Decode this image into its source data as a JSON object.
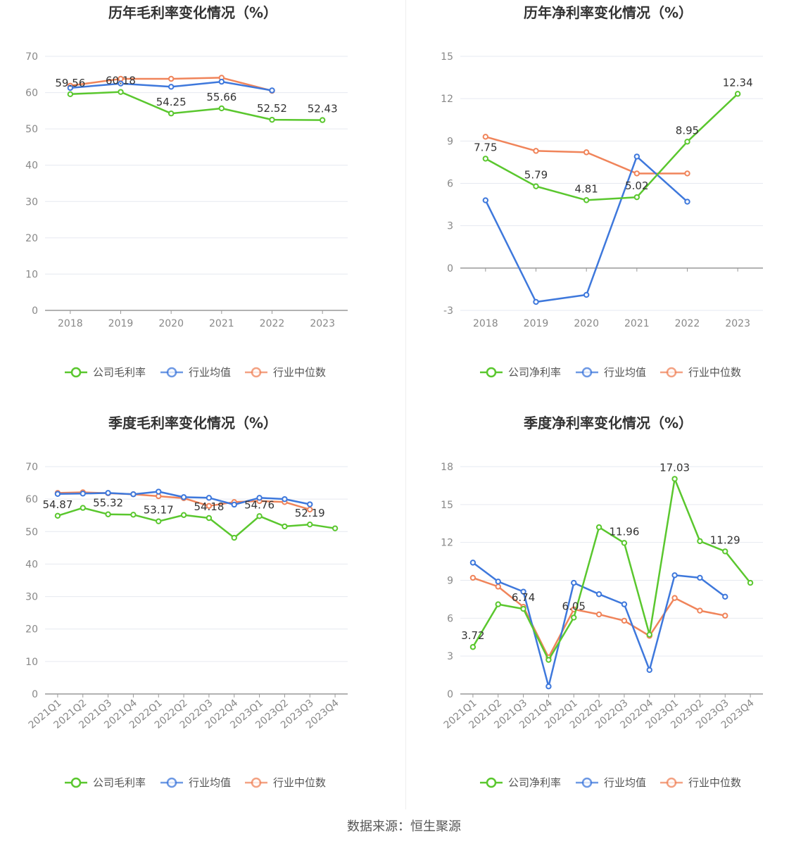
{
  "colors": {
    "company": "#5ac72e",
    "avg": "#3e78dc",
    "median": "#f0845a",
    "grid": "#e6e9f0",
    "axis": "#999999",
    "text": "#888888",
    "title": "#333333"
  },
  "source": {
    "label": "数据来源：",
    "name": "恒生聚源"
  },
  "chart_data": [
    {
      "id": "annual-gross",
      "type": "line",
      "title": "历年毛利率变化情况（%）",
      "categories": [
        "2018",
        "2019",
        "2020",
        "2021",
        "2022",
        "2023"
      ],
      "ylim": [
        0,
        70
      ],
      "yticks": [
        0,
        10,
        20,
        30,
        40,
        50,
        60,
        70
      ],
      "rotate_labels": false,
      "series": [
        {
          "name": "公司毛利率",
          "key": "company",
          "values": [
            59.56,
            60.18,
            54.25,
            55.66,
            52.52,
            52.43
          ],
          "labels": [
            "59.56",
            "60.18",
            "54.25",
            "55.66",
            "52.52",
            "52.43"
          ]
        },
        {
          "name": "行业均值",
          "key": "avg",
          "values": [
            61.3,
            62.5,
            61.6,
            63.0,
            60.6,
            null
          ]
        },
        {
          "name": "行业中位数",
          "key": "median",
          "values": [
            61.9,
            63.8,
            63.8,
            64.1,
            60.5,
            null
          ]
        }
      ]
    },
    {
      "id": "annual-net",
      "type": "line",
      "title": "历年净利率变化情况（%）",
      "categories": [
        "2018",
        "2019",
        "2020",
        "2021",
        "2022",
        "2023"
      ],
      "ylim": [
        -3,
        15
      ],
      "yticks": [
        -3,
        0,
        3,
        6,
        9,
        12,
        15
      ],
      "zero_axis": true,
      "rotate_labels": false,
      "series": [
        {
          "name": "公司净利率",
          "key": "company",
          "values": [
            7.75,
            5.79,
            4.81,
            5.02,
            8.95,
            12.34
          ],
          "labels": [
            "7.75",
            "5.79",
            "4.81",
            "5.02",
            "8.95",
            "12.34"
          ]
        },
        {
          "name": "行业均值",
          "key": "avg",
          "values": [
            4.8,
            -2.4,
            -1.9,
            7.9,
            4.7,
            null
          ]
        },
        {
          "name": "行业中位数",
          "key": "median",
          "values": [
            9.3,
            8.3,
            8.2,
            6.7,
            6.7,
            null
          ]
        }
      ]
    },
    {
      "id": "quarterly-gross",
      "type": "line",
      "title": "季度毛利率变化情况（%）",
      "categories": [
        "2021Q1",
        "2021Q2",
        "2021Q3",
        "2021Q4",
        "2022Q1",
        "2022Q2",
        "2022Q3",
        "2022Q4",
        "2023Q1",
        "2023Q2",
        "2023Q3",
        "2023Q4"
      ],
      "ylim": [
        0,
        70
      ],
      "yticks": [
        0,
        10,
        20,
        30,
        40,
        50,
        60,
        70
      ],
      "rotate_labels": true,
      "series": [
        {
          "name": "公司毛利率",
          "key": "company",
          "values": [
            54.87,
            57.3,
            55.32,
            55.2,
            53.17,
            55.1,
            54.18,
            48.1,
            54.76,
            51.6,
            52.19,
            51.0
          ],
          "labels": [
            "54.87",
            null,
            "55.32",
            null,
            "53.17",
            null,
            "54.18",
            null,
            "54.76",
            null,
            "52.19",
            null
          ]
        },
        {
          "name": "行业均值",
          "key": "avg",
          "values": [
            61.6,
            61.7,
            61.9,
            61.5,
            62.3,
            60.6,
            60.4,
            58.3,
            60.4,
            60.0,
            58.4,
            null
          ]
        },
        {
          "name": "行业中位数",
          "key": "median",
          "values": [
            61.9,
            62.1,
            61.8,
            61.5,
            60.9,
            60.3,
            57.9,
            59.1,
            59.4,
            59.1,
            56.8,
            null
          ]
        }
      ]
    },
    {
      "id": "quarterly-net",
      "type": "line",
      "title": "季度净利率变化情况（%）",
      "categories": [
        "2021Q1",
        "2021Q2",
        "2021Q3",
        "2021Q4",
        "2022Q1",
        "2022Q2",
        "2022Q3",
        "2022Q4",
        "2023Q1",
        "2023Q2",
        "2023Q3",
        "2023Q4"
      ],
      "ylim": [
        0,
        18
      ],
      "yticks": [
        0,
        3,
        6,
        9,
        12,
        15,
        18
      ],
      "rotate_labels": true,
      "series": [
        {
          "name": "公司净利率",
          "key": "company",
          "values": [
            3.72,
            7.1,
            6.74,
            2.7,
            6.05,
            13.2,
            11.96,
            4.7,
            17.03,
            12.1,
            11.29,
            8.8
          ],
          "labels": [
            "3.72",
            null,
            "6.74",
            null,
            "6.05",
            null,
            "11.96",
            null,
            "17.03",
            null,
            "11.29",
            null
          ]
        },
        {
          "name": "行业均值",
          "key": "avg",
          "values": [
            10.4,
            8.9,
            8.1,
            0.6,
            8.8,
            7.9,
            7.1,
            1.9,
            9.4,
            9.2,
            7.7,
            null
          ]
        },
        {
          "name": "行业中位数",
          "key": "median",
          "values": [
            9.2,
            8.5,
            6.9,
            2.9,
            6.7,
            6.3,
            5.8,
            4.6,
            7.6,
            6.6,
            6.2,
            null
          ]
        }
      ]
    }
  ]
}
